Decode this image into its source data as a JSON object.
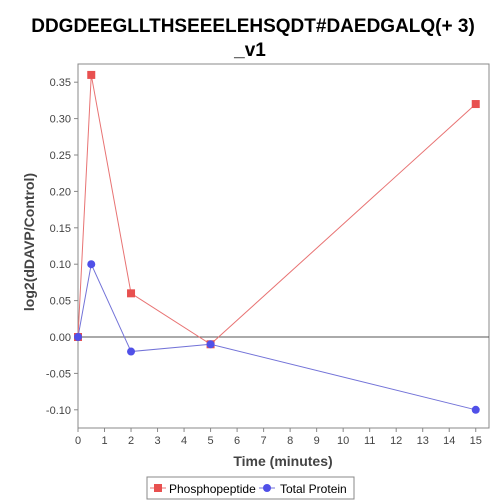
{
  "chart_data": {
    "type": "line",
    "title_line1": "DDGDEEGLLTHSEEELEHSQDT#DAEDGALQ(+ 3)",
    "title_line2": "_v1",
    "xlabel": "Time (minutes)",
    "ylabel": "log2(dDAVP/Control)",
    "xlim": [
      0,
      15.5
    ],
    "ylim": [
      -0.125,
      0.375
    ],
    "xticks": [
      0,
      1,
      2,
      3,
      4,
      5,
      6,
      7,
      8,
      9,
      10,
      11,
      12,
      13,
      14,
      15
    ],
    "yticks": [
      -0.1,
      -0.05,
      0.0,
      0.05,
      0.1,
      0.15,
      0.2,
      0.25,
      0.3,
      0.35
    ],
    "ytick_labels": [
      "-0.10",
      "-0.05",
      "0.00",
      "0.05",
      "0.10",
      "0.15",
      "0.20",
      "0.25",
      "0.30",
      "0.35"
    ],
    "zero_line": true,
    "grid": false,
    "legend_position": "bottom-center",
    "series": [
      {
        "name": "Phosphopeptide",
        "color": "#e8504f",
        "line_color": "#e87373",
        "marker": "square",
        "x": [
          0,
          0.5,
          2,
          5,
          15
        ],
        "y": [
          0.0,
          0.36,
          0.06,
          -0.01,
          0.32
        ]
      },
      {
        "name": "Total Protein",
        "color": "#5050e8",
        "line_color": "#7373d8",
        "marker": "circle",
        "x": [
          0,
          0.5,
          2,
          5,
          15
        ],
        "y": [
          0.0,
          0.1,
          -0.02,
          -0.01,
          -0.1
        ]
      }
    ]
  }
}
